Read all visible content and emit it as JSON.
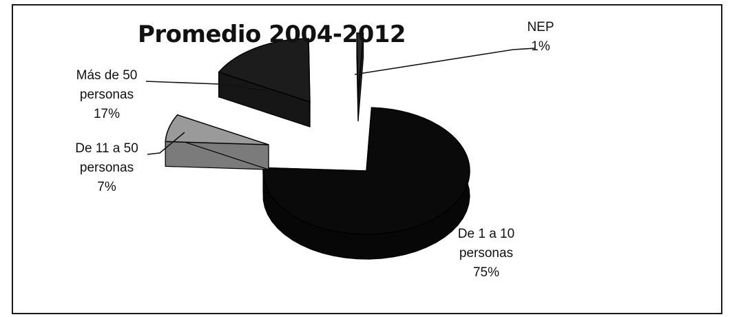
{
  "chart_data": {
    "type": "pie",
    "title": "Promedio 2004-2012",
    "slices": [
      {
        "name": "De 1 a 10 personas",
        "label_lines": [
          "De 1 a  10",
          "personas",
          "75%"
        ],
        "value": 75,
        "color": "#0a0a0a"
      },
      {
        "name": "De 11 a 50 personas",
        "label_lines": [
          "De 11 a 50",
          "personas",
          "7%"
        ],
        "value": 7,
        "color": "#9a9a9a"
      },
      {
        "name": "Más de 50 personas",
        "label_lines": [
          "Más de 50",
          "personas",
          "17%"
        ],
        "value": 17,
        "color": "#1c1c1c"
      },
      {
        "name": "NEP",
        "label_lines": [
          "NEP",
          "1%"
        ],
        "value": 1,
        "color": "#2a2a2a"
      }
    ],
    "style": "3d-exploded",
    "legend": "none"
  }
}
